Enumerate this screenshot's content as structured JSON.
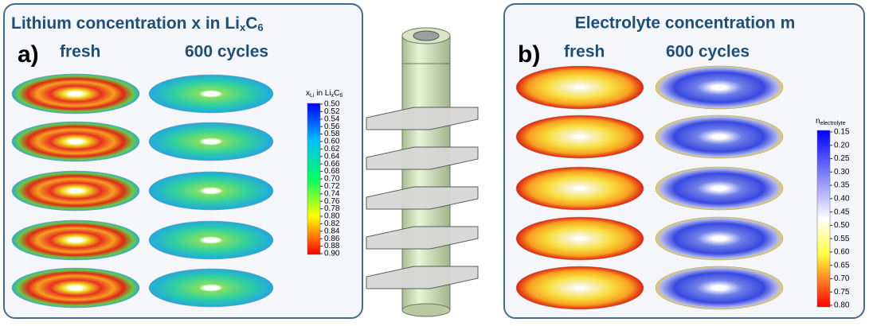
{
  "left_panel": {
    "title": {
      "main": "Lithium concentration x in Li",
      "sub1": "x",
      "mid": "C",
      "sub2": "6"
    },
    "label": "a)",
    "col1": "fresh",
    "col2": "600 cycles",
    "colorbar": {
      "label": {
        "a": "x",
        "a_sub": "Li",
        "b": " in Li",
        "b_sub": "x",
        "c": "C",
        "c_sub": "6"
      },
      "ticks": [
        "0.50",
        "0.52",
        "0.54",
        "0.56",
        "0.58",
        "0.60",
        "0.62",
        "0.64",
        "0.66",
        "0.68",
        "0.70",
        "0.72",
        "0.74",
        "0.76",
        "0.78",
        "0.80",
        "0.82",
        "0.84",
        "0.86",
        "0.88",
        "0.90"
      ]
    }
  },
  "right_panel": {
    "title": "Electrolyte concentration m",
    "label": "b)",
    "col1": "fresh",
    "col2": "600 cycles",
    "colorbar": {
      "label": {
        "a": "n",
        "a_sub": "electrolyte"
      },
      "ticks": [
        "0.15",
        "0.20",
        "0.25",
        "0.30",
        "0.35",
        "0.40",
        "0.45",
        "0.50",
        "0.55",
        "0.60",
        "0.65",
        "0.70",
        "0.75",
        "0.80"
      ]
    }
  }
}
